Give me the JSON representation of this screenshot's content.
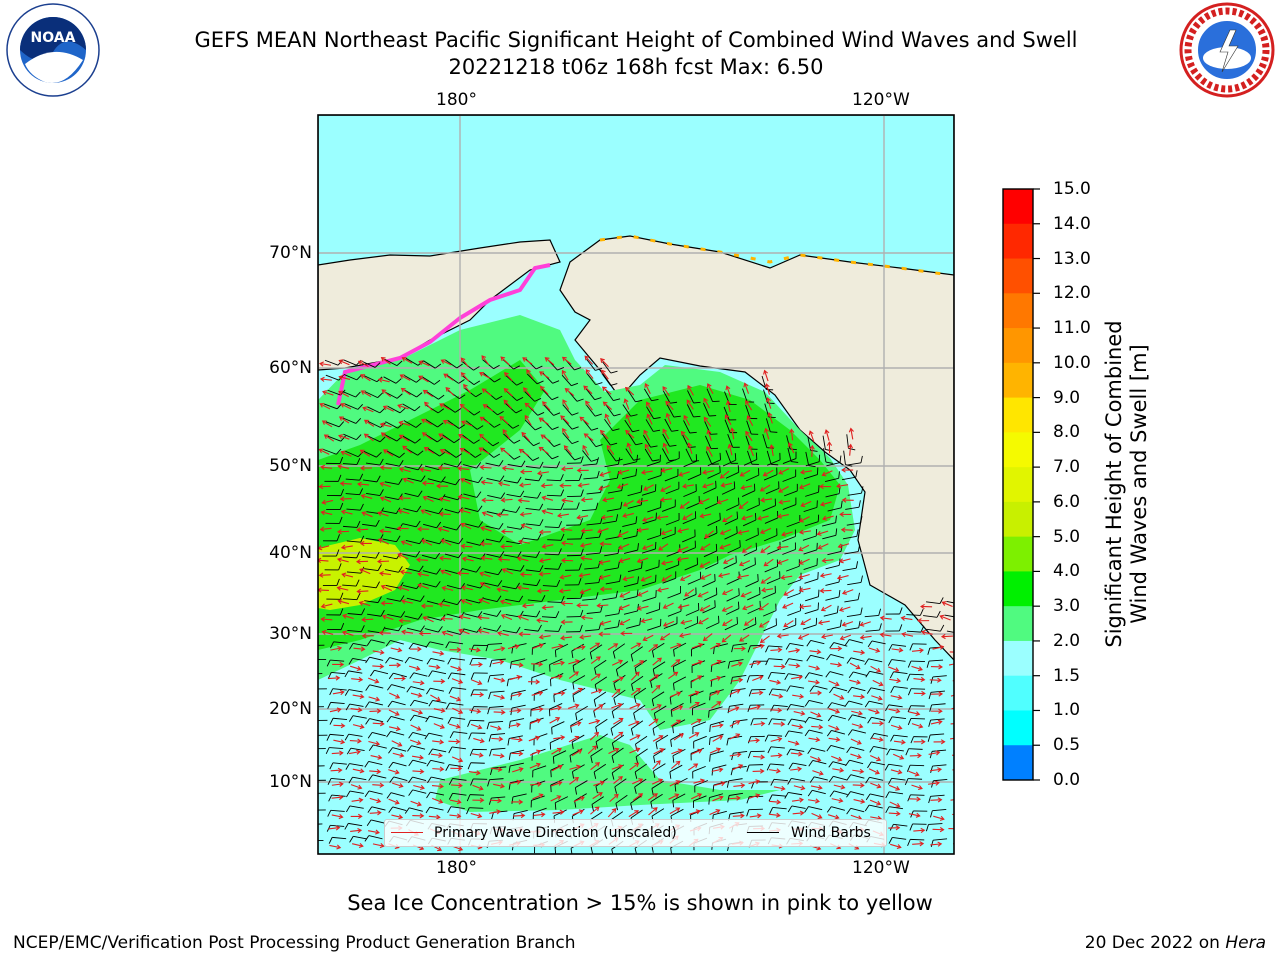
{
  "header": {
    "title_line1": "GEFS MEAN Northeast Pacific Significant Height of Combined Wind Waves and Swell",
    "title_line2": "20221218 t06z 168h fcst   Max: 6.50"
  },
  "logos": {
    "left": "NOAA",
    "right": "NATIONAL WEATHER SERVICE"
  },
  "map": {
    "lon_labels": [
      "180°",
      "120°W"
    ],
    "lat_labels": [
      "70°N",
      "60°N",
      "50°N",
      "40°N",
      "30°N",
      "20°N",
      "10°N"
    ],
    "colors": {
      "land": "#efecdc",
      "ocean_low": "#9bffff",
      "ocean_mid": "#50fa80",
      "ocean_high": "#20e820",
      "peak": "#c8f200",
      "wave_arrow": "#e02020",
      "wind_barb": "#000000",
      "sea_ice": "#ff40d8"
    }
  },
  "legend": {
    "wave_label": "Primary Wave Direction (unscaled)",
    "wind_label": "Wind Barbs"
  },
  "colorbar": {
    "ticks": [
      "15.0",
      "14.0",
      "13.0",
      "12.0",
      "11.0",
      "10.0",
      "9.0",
      "8.0",
      "7.0",
      "6.0",
      "5.0",
      "4.0",
      "3.0",
      "2.0",
      "1.5",
      "1.0",
      "0.5",
      "0.0"
    ],
    "colors": [
      "#ff0000",
      "#ff2800",
      "#ff5000",
      "#ff7800",
      "#ff9600",
      "#ffb400",
      "#ffe600",
      "#f5fa00",
      "#e1f500",
      "#c8f000",
      "#7df000",
      "#00f000",
      "#50fa80",
      "#9bffff",
      "#50ffff",
      "#00ffff",
      "#0080ff",
      "#0000ff"
    ],
    "label_line1": "Significant Height of Combined",
    "label_line2": "Wind Waves and Swell [m]"
  },
  "notes": {
    "ice": "Sea Ice Concentration > 15% is shown in pink to yellow"
  },
  "footer": {
    "left": "NCEP/EMC/Verification Post Processing Product Generation Branch",
    "date": "20 Dec 2022 on",
    "host": "Hera"
  }
}
